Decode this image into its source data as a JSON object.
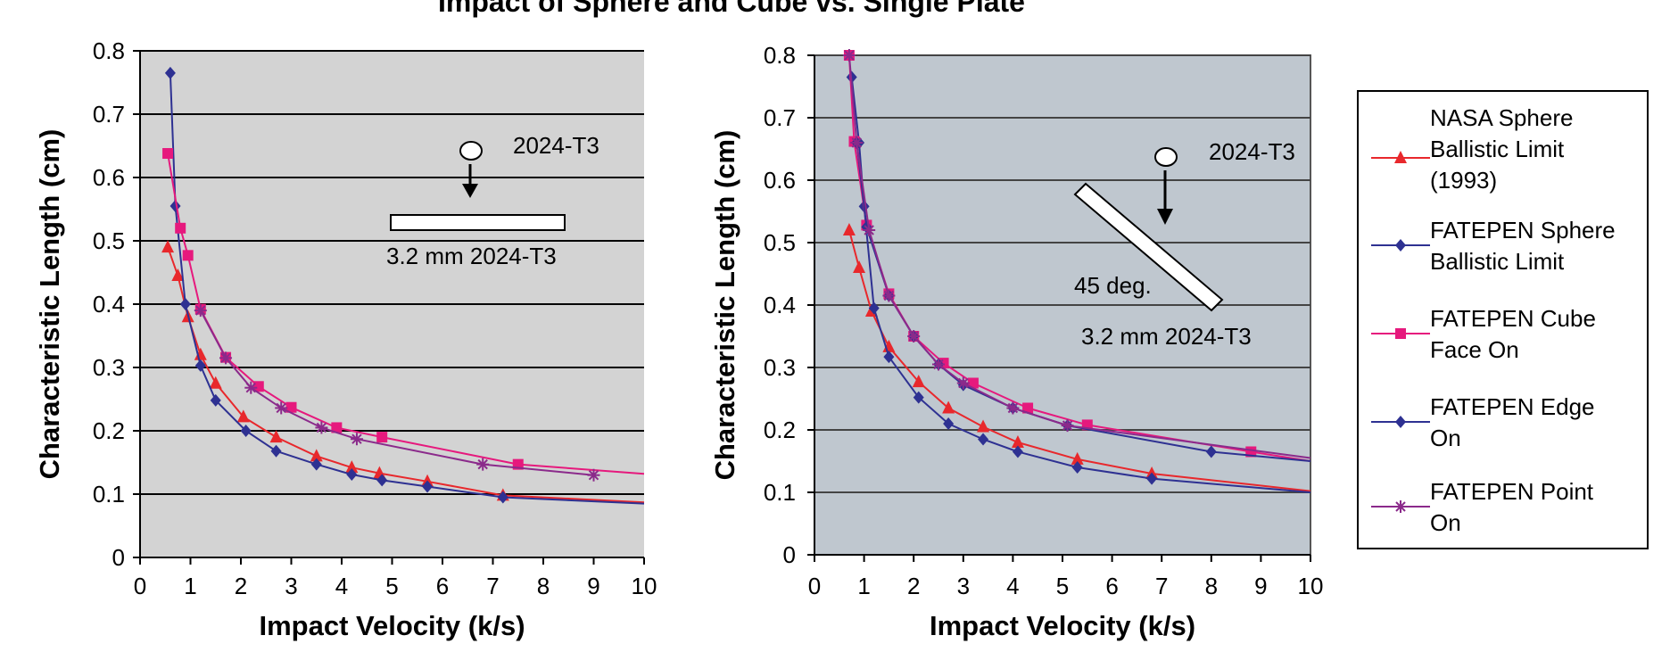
{
  "title": "Impact of Sphere and Cube vs. Single Plate",
  "legend": [
    {
      "label": "NASA Sphere\nBallistic Limit\n(1993)",
      "color": "#e8282c",
      "marker": "triangle"
    },
    {
      "label": "FATEPEN Sphere\nBallistic Limit",
      "color": "#2e3192",
      "marker": "diamond"
    },
    {
      "label": "FATEPEN Cube\nFace On",
      "color": "#e6197d",
      "marker": "square"
    },
    {
      "label": "FATEPEN Edge\nOn",
      "color": "#2e3192",
      "marker": "diamond"
    },
    {
      "label": "FATEPEN Point\nOn",
      "color": "#8b2a8b",
      "marker": "star"
    }
  ],
  "chart_data": [
    {
      "type": "line",
      "panel": "left",
      "xlabel": "Impact Velocity (k/s)",
      "ylabel": "Characteristic Length (cm)",
      "xlim": [
        0,
        10
      ],
      "ylim": [
        0,
        0.8
      ],
      "xticks": [
        "0",
        "1",
        "2",
        "3",
        "4",
        "5",
        "6",
        "7",
        "8",
        "9",
        "10"
      ],
      "yticks": [
        "0",
        "0.1",
        "0.2",
        "0.3",
        "0.4",
        "0.5",
        "0.6",
        "0.7",
        "0.8"
      ],
      "grid": "horizontal",
      "background": "#d3d3d3",
      "annotations": [
        "2024-T3",
        "3.2 mm 2024-T3"
      ],
      "series": [
        {
          "name": "NASA Sphere Ballistic Limit (1993)",
          "color": "#e8282c",
          "marker": "triangle",
          "x": [
            0.55,
            0.75,
            0.95,
            1.2,
            1.5,
            2.05,
            2.7,
            3.5,
            4.2,
            4.75,
            5.7,
            7.2,
            10
          ],
          "y": [
            0.49,
            0.445,
            0.38,
            0.32,
            0.275,
            0.222,
            0.19,
            0.16,
            0.142,
            0.133,
            0.12,
            0.098,
            0.087
          ]
        },
        {
          "name": "FATEPEN Sphere Ballistic Limit",
          "color": "#2e3192",
          "marker": "diamond",
          "x": [
            0.6,
            0.7,
            0.9,
            1.2,
            1.5,
            2.1,
            2.7,
            3.5,
            4.2,
            4.8,
            5.7,
            7.2,
            10
          ],
          "y": [
            0.765,
            0.555,
            0.4,
            0.303,
            0.248,
            0.2,
            0.168,
            0.147,
            0.131,
            0.122,
            0.112,
            0.095,
            0.085
          ]
        },
        {
          "name": "FATEPEN Cube Face On",
          "color": "#e6197d",
          "marker": "square",
          "x": [
            0.55,
            0.8,
            0.95,
            1.2,
            1.7,
            2.35,
            3.0,
            3.9,
            4.8,
            7.5,
            10
          ],
          "y": [
            0.638,
            0.52,
            0.477,
            0.392,
            0.316,
            0.27,
            0.237,
            0.205,
            0.19,
            0.147,
            0.132
          ]
        },
        {
          "name": "FATEPEN Point On",
          "color": "#8b2a8b",
          "marker": "star",
          "x": [
            1.2,
            1.7,
            2.2,
            2.8,
            3.6,
            4.3,
            6.8,
            9.0
          ],
          "y": [
            0.39,
            0.315,
            0.268,
            0.236,
            0.205,
            0.187,
            0.147,
            0.13
          ]
        }
      ]
    },
    {
      "type": "line",
      "panel": "right",
      "xlabel": "Impact Velocity (k/s)",
      "ylabel": "Characteristic Length (cm)",
      "xlim": [
        0,
        10
      ],
      "ylim": [
        0,
        0.8
      ],
      "xticks": [
        "0",
        "1",
        "2",
        "3",
        "4",
        "5",
        "6",
        "7",
        "8",
        "9",
        "10"
      ],
      "yticks": [
        "0",
        "0.1",
        "0.2",
        "0.3",
        "0.4",
        "0.5",
        "0.6",
        "0.7",
        "0.8"
      ],
      "grid": "horizontal",
      "background": "#bfc7cf",
      "annotations": [
        "2024-T3",
        "45 deg.",
        "3.2 mm 2024-T3"
      ],
      "series": [
        {
          "name": "NASA Sphere Ballistic Limit (1993)",
          "color": "#e8282c",
          "marker": "triangle",
          "x": [
            0.7,
            0.9,
            1.15,
            1.5,
            2.1,
            2.7,
            3.4,
            4.1,
            5.3,
            6.8,
            10
          ],
          "y": [
            0.52,
            0.46,
            0.39,
            0.333,
            0.277,
            0.235,
            0.205,
            0.18,
            0.153,
            0.13,
            0.102
          ]
        },
        {
          "name": "FATEPEN Sphere Ballistic Limit",
          "color": "#2e3192",
          "marker": "diamond",
          "x": [
            0.75,
            0.9,
            1.0,
            1.2,
            1.5,
            2.1,
            2.7,
            3.4,
            4.1,
            5.3,
            6.8,
            10
          ],
          "y": [
            0.765,
            0.66,
            0.558,
            0.395,
            0.317,
            0.252,
            0.21,
            0.185,
            0.165,
            0.14,
            0.122,
            0.1
          ]
        },
        {
          "name": "FATEPEN Cube Face On",
          "color": "#e6197d",
          "marker": "square",
          "x": [
            0.7,
            0.8,
            1.05,
            1.5,
            2.0,
            2.6,
            3.2,
            4.3,
            5.5,
            8.8,
            10
          ],
          "y": [
            0.8,
            0.662,
            0.528,
            0.418,
            0.35,
            0.307,
            0.275,
            0.235,
            0.208,
            0.165,
            0.15
          ]
        },
        {
          "name": "FATEPEN Edge On",
          "color": "#2e3192",
          "marker": "diamond",
          "x": [
            0.85,
            1.05,
            1.5,
            2.0,
            2.5,
            3.0,
            4.0,
            5.1,
            8.0,
            10
          ],
          "y": [
            0.66,
            0.525,
            0.415,
            0.35,
            0.305,
            0.272,
            0.235,
            0.207,
            0.165,
            0.15
          ]
        },
        {
          "name": "FATEPEN Point On",
          "color": "#8b2a8b",
          "marker": "star",
          "x": [
            0.7,
            0.85,
            1.1,
            1.5,
            2.0,
            2.5,
            3.0,
            4.0,
            5.1,
            10
          ],
          "y": [
            0.8,
            0.66,
            0.52,
            0.415,
            0.35,
            0.305,
            0.275,
            0.235,
            0.207,
            0.155
          ]
        }
      ]
    }
  ]
}
